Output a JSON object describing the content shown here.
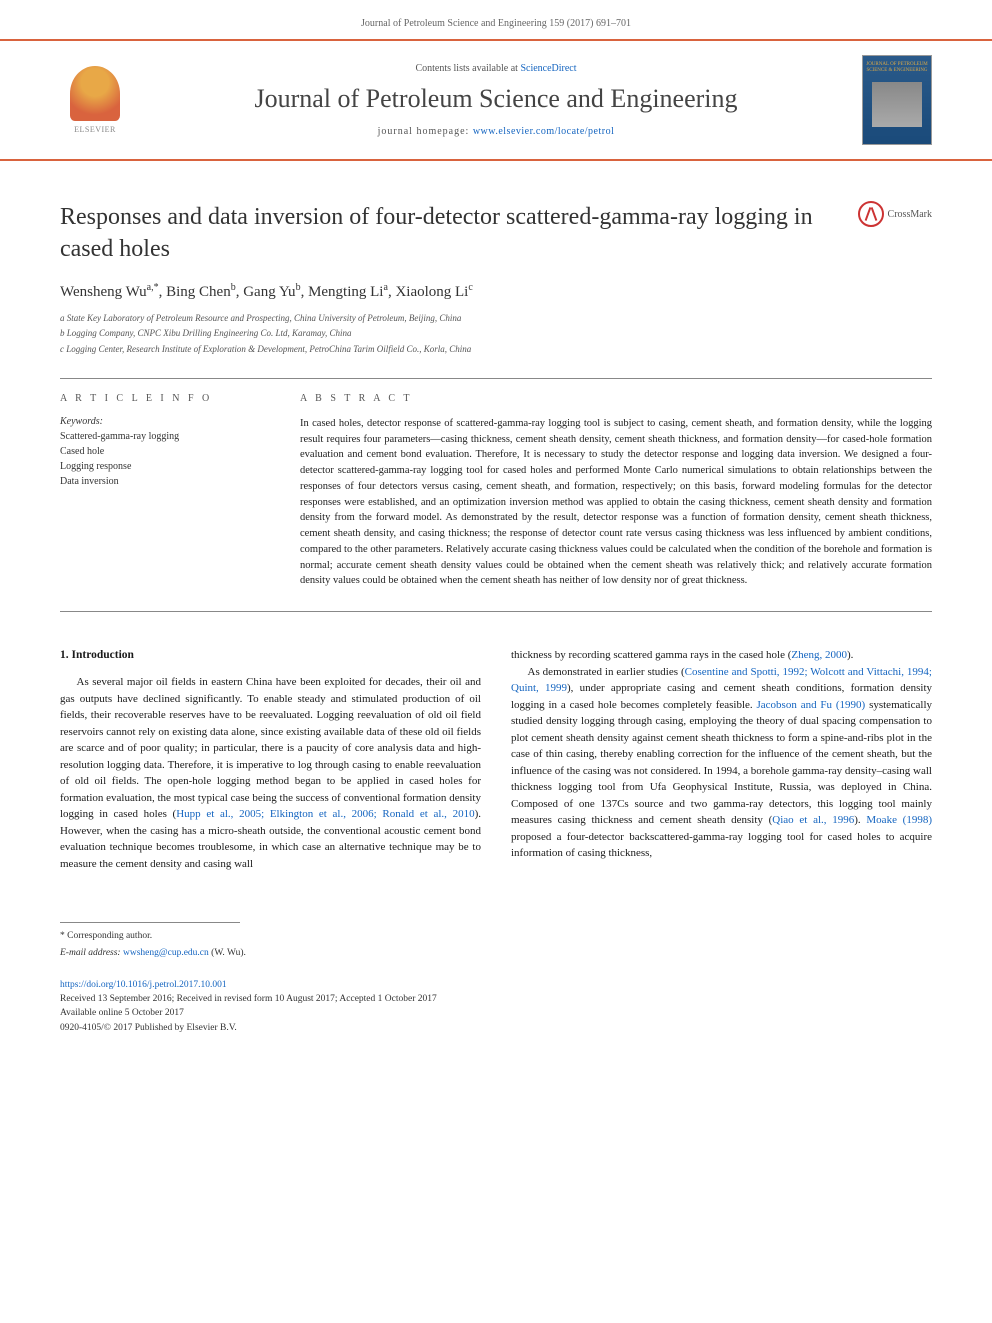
{
  "header": {
    "citation": "Journal of Petroleum Science and Engineering 159 (2017) 691–701",
    "contents_prefix": "Contents lists available at ",
    "contents_link": "ScienceDirect",
    "journal_name": "Journal of Petroleum Science and Engineering",
    "homepage_prefix": "journal homepage: ",
    "homepage_url": "www.elsevier.com/locate/petrol",
    "elsevier_label": "ELSEVIER",
    "cover_title": "JOURNAL OF PETROLEUM SCIENCE & ENGINEERING"
  },
  "crossmark_label": "CrossMark",
  "title": "Responses and data inversion of four-detector scattered-gamma-ray logging in cased holes",
  "authors_html": {
    "a1": "Wensheng Wu",
    "a1_sup": "a,*",
    "a2": "Bing Chen",
    "a2_sup": "b",
    "a3": "Gang Yu",
    "a3_sup": "b",
    "a4": "Mengting Li",
    "a4_sup": "a",
    "a5": "Xiaolong Li",
    "a5_sup": "c"
  },
  "affiliations": {
    "a": "a State Key Laboratory of Petroleum Resource and Prospecting, China University of Petroleum, Beijing, China",
    "b": "b Logging Company, CNPC Xibu Drilling Engineering Co. Ltd, Karamay, China",
    "c": "c Logging Center, Research Institute of Exploration & Development, PetroChina Tarim Oilfield Co., Korla, China"
  },
  "info_label": "A R T I C L E  I N F O",
  "abstract_label": "A B S T R A C T",
  "keywords_label": "Keywords:",
  "keywords": [
    "Scattered-gamma-ray logging",
    "Cased hole",
    "Logging response",
    "Data inversion"
  ],
  "abstract": "In cased holes, detector response of scattered-gamma-ray logging tool is subject to casing, cement sheath, and formation density, while the logging result requires four parameters—casing thickness, cement sheath density, cement sheath thickness, and formation density—for cased-hole formation evaluation and cement bond evaluation. Therefore, It is necessary to study the detector response and logging data inversion. We designed a four-detector scattered-gamma-ray logging tool for cased holes and performed Monte Carlo numerical simulations to obtain relationships between the responses of four detectors versus casing, cement sheath, and formation, respectively; on this basis, forward modeling formulas for the detector responses were established, and an optimization inversion method was applied to obtain the casing thickness, cement sheath density and formation density from the forward model. As demonstrated by the result, detector response was a function of formation density, cement sheath thickness, cement sheath density, and casing thickness; the response of detector count rate versus casing thickness was less influenced by ambient conditions, compared to the other parameters. Relatively accurate casing thickness values could be calculated when the condition of the borehole and formation is normal; accurate cement sheath density values could be obtained when the cement sheath was relatively thick; and relatively accurate formation density values could be obtained when the cement sheath has neither of low density nor of great thickness.",
  "intro_heading": "1. Introduction",
  "intro_col1_p1a": "As several major oil fields in eastern China have been exploited for decades, their oil and gas outputs have declined significantly. To enable steady and stimulated production of oil fields, their recoverable reserves have to be reevaluated. Logging reevaluation of old oil field reservoirs cannot rely on existing data alone, since existing available data of these old oil fields are scarce and of poor quality; in particular, there is a paucity of core analysis data and high-resolution logging data. Therefore, it is imperative to log through casing to enable reevaluation of old oil fields. The open-hole logging method began to be applied in cased holes for formation evaluation, the most typical case being the success of conventional formation density logging in cased holes (",
  "intro_col1_cite1": "Hupp et al., 2005; Elkington et al., 2006; Ronald et al., 2010",
  "intro_col1_p1b": "). However, when the casing has a micro-sheath outside, the conventional acoustic cement bond evaluation technique becomes troublesome, in which case an alternative technique may be to measure the cement density and casing wall",
  "intro_col2_p1a": "thickness by recording scattered gamma rays in the cased hole (",
  "intro_col2_cite1": "Zheng, 2000",
  "intro_col2_p1b": ").",
  "intro_col2_p2a": "As demonstrated in earlier studies (",
  "intro_col2_cite2": "Cosentine and Spotti, 1992; Wolcott and Vittachi, 1994; Quint, 1999",
  "intro_col2_p2b": "), under appropriate casing and cement sheath conditions, formation density logging in a cased hole becomes completely feasible. ",
  "intro_col2_cite3": "Jacobson and Fu (1990)",
  "intro_col2_p2c": " systematically studied density logging through casing, employing the theory of dual spacing compensation to plot cement sheath density against cement sheath thickness to form a spine-and-ribs plot in the case of thin casing, thereby enabling correction for the influence of the cement sheath, but the influence of the casing was not considered. In 1994, a borehole gamma-ray density–casing wall thickness logging tool from Ufa Geophysical Institute, Russia, was deployed in China. Composed of one 137Cs source and two gamma-ray detectors, this logging tool mainly measures casing thickness and cement sheath density (",
  "intro_col2_cite4": "Qiao et al., 1996",
  "intro_col2_p2d": "). ",
  "intro_col2_cite5": "Moake (1998)",
  "intro_col2_p2e": " proposed a four-detector backscattered-gamma-ray logging tool for cased holes to acquire information of casing thickness,",
  "footer": {
    "corr": "* Corresponding author.",
    "email_label": "E-mail address: ",
    "email": "wwsheng@cup.edu.cn",
    "email_suffix": " (W. Wu).",
    "doi": "https://doi.org/10.1016/j.petrol.2017.10.001",
    "received": "Received 13 September 2016; Received in revised form 10 August 2017; Accepted 1 October 2017",
    "available": "Available online 5 October 2017",
    "copyright": "0920-4105/© 2017 Published by Elsevier B.V."
  },
  "colors": {
    "accent": "#d9633e",
    "link": "#1565c0",
    "text": "#1a1a1a"
  }
}
